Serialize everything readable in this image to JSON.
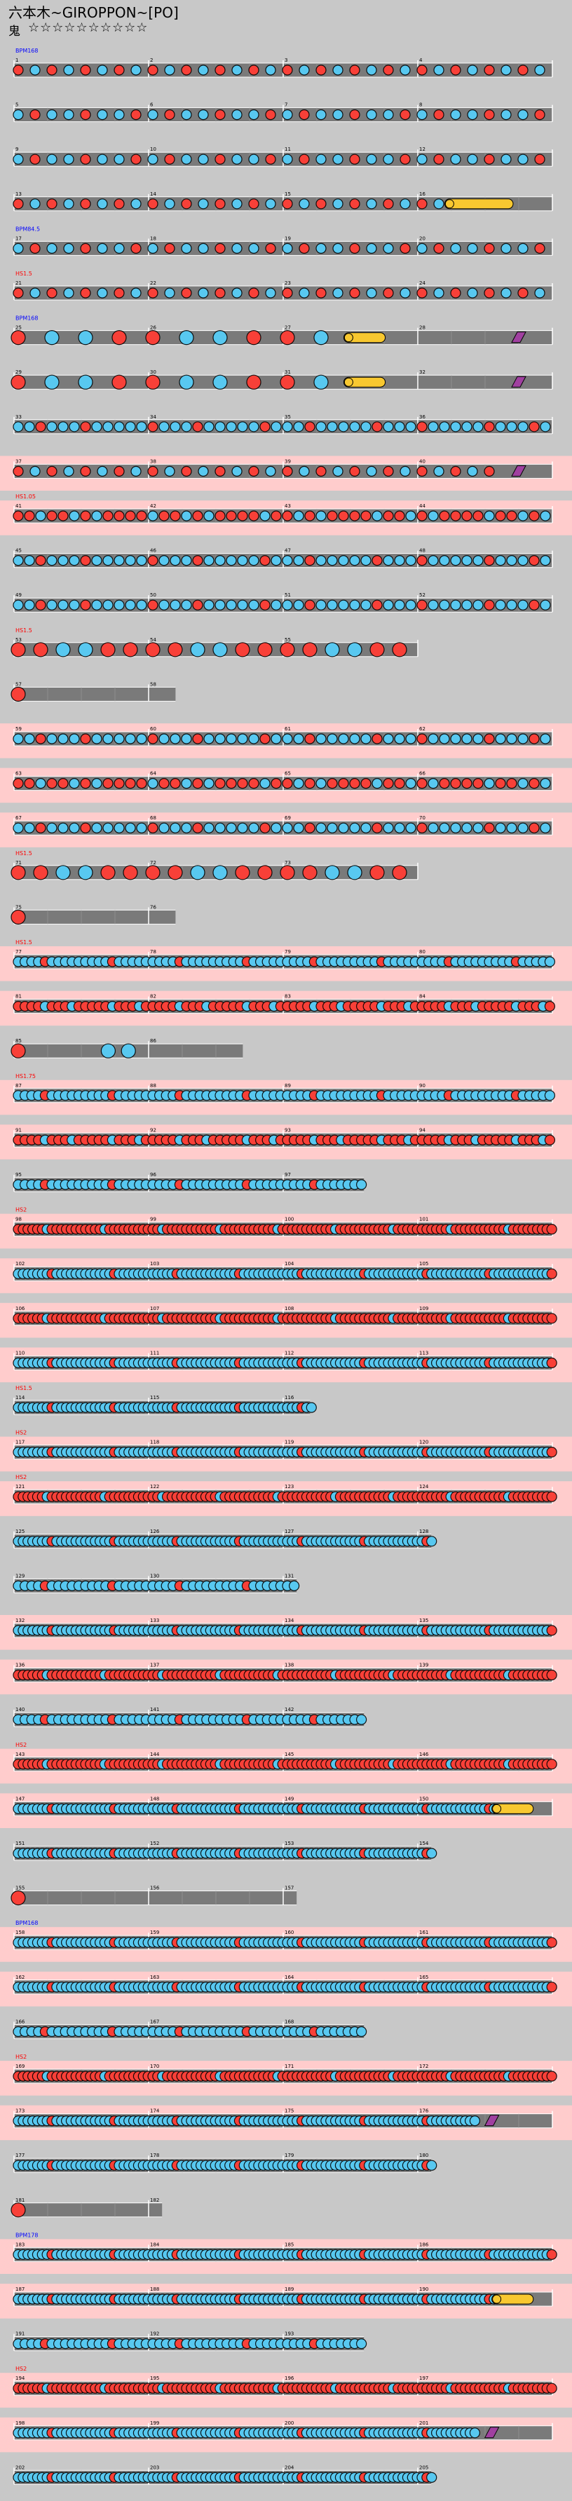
{
  "header": {
    "title": "六本木~GIROPPON~[PO]",
    "course": "鬼",
    "stars": "☆☆☆☆☆☆☆☆☆☆"
  },
  "colors": {
    "background": "#c8c8c8",
    "lane": "#7a7a7a",
    "lane_highlight": "#ffcccc",
    "don": "#f84038",
    "ka": "#58c8f0",
    "drumroll": "#f8c830",
    "balloon": "#a040a0",
    "bpm_label": "#0000ff",
    "hs_label": "#ff0000"
  },
  "rows": [
    {
      "n": 1,
      "len": 4,
      "pat": "4d",
      "lbl": "BPM168"
    },
    {
      "n": 5,
      "len": 4,
      "pat": "4k"
    },
    {
      "n": 9,
      "len": 4,
      "pat": "4k"
    },
    {
      "n": 13,
      "len": 4,
      "pat": "4d",
      "roll": [
        3.2,
        3.5
      ]
    },
    {
      "n": 17,
      "len": 4,
      "pat": "4k",
      "lbl": "BPM84.5"
    },
    {
      "n": 21,
      "len": 4,
      "pat": "4d",
      "lbl": "HS1.5"
    },
    {
      "n": 25,
      "len": 4,
      "pat": "big",
      "roll": [
        2.45,
        2.55
      ],
      "bal": 3.75,
      "lbl": "BPM168"
    },
    {
      "n": 29,
      "len": 4,
      "pat": "big",
      "roll": [
        2.45,
        2.55
      ],
      "bal": 3.75
    },
    {
      "n": 33,
      "len": 4,
      "pat": "8k"
    },
    {
      "n": 37,
      "len": 4,
      "pat": "4d",
      "bal": 3.75,
      "hl": true
    },
    {
      "n": 41,
      "len": 4,
      "pat": "8d",
      "hl": true,
      "lbl": "HS1.05"
    },
    {
      "n": 45,
      "len": 4,
      "pat": "8k"
    },
    {
      "n": 49,
      "len": 4,
      "pat": "8k"
    },
    {
      "n": 53,
      "len": 3,
      "pat": "big4",
      "lbl": "HS1.5"
    },
    {
      "n": 57,
      "len": 1.2,
      "pat": "end"
    },
    {
      "n": 59,
      "len": 4,
      "pat": "8k",
      "hl": true
    },
    {
      "n": 63,
      "len": 4,
      "pat": "8d",
      "hl": true
    },
    {
      "n": 67,
      "len": 4,
      "pat": "8k",
      "hl": true
    },
    {
      "n": 71,
      "len": 3,
      "pat": "big4",
      "lbl": "HS1.5"
    },
    {
      "n": 75,
      "len": 1.2,
      "pat": "end"
    },
    {
      "n": 77,
      "len": 4,
      "pat": "16k",
      "hl": true,
      "lbl": "HS1.5"
    },
    {
      "n": 81,
      "len": 4,
      "pat": "16d",
      "hl": true
    },
    {
      "n": 85,
      "len": 1.7,
      "pat": "end3"
    },
    {
      "n": 87,
      "len": 4,
      "pat": "16k",
      "hl": true,
      "lbl": "HS1.75"
    },
    {
      "n": 91,
      "len": 4,
      "pat": "16d",
      "hl": true
    },
    {
      "n": 95,
      "len": 2.6,
      "pat": "16k"
    },
    {
      "n": 98,
      "len": 4,
      "pat": "24d",
      "hl": true,
      "lbl": "HS2"
    },
    {
      "n": 102,
      "len": 4,
      "pat": "24k",
      "hl": true
    },
    {
      "n": 106,
      "len": 4,
      "pat": "24d",
      "hl": true
    },
    {
      "n": 110,
      "len": 4,
      "pat": "24k",
      "hl": true
    },
    {
      "n": 114,
      "len": 2.2,
      "pat": "24k",
      "lbl": "HS1.5"
    },
    {
      "n": 117,
      "len": 4,
      "pat": "24k",
      "hl": true,
      "lbl": "HS2"
    },
    {
      "n": 121,
      "len": 4,
      "pat": "24d",
      "hl": true,
      "lbl": "HS2"
    },
    {
      "n": 125,
      "len": 3.1,
      "pat": "24k"
    },
    {
      "n": 129,
      "len": 2.1,
      "pat": "16k"
    },
    {
      "n": 132,
      "len": 4,
      "pat": "24k",
      "hl": true
    },
    {
      "n": 136,
      "len": 4,
      "pat": "24d",
      "hl": true
    },
    {
      "n": 140,
      "len": 2.6,
      "pat": "16k"
    },
    {
      "n": 143,
      "len": 4,
      "pat": "24d",
      "hl": true,
      "lbl": "HS2"
    },
    {
      "n": 147,
      "len": 4,
      "pat": "24k",
      "roll": [
        3.55,
        3.65
      ],
      "hl": true
    },
    {
      "n": 151,
      "len": 3.1,
      "pat": "24k"
    },
    {
      "n": 155,
      "len": 2.1,
      "pat": "end"
    },
    {
      "n": 158,
      "len": 4,
      "pat": "24k",
      "hl": true,
      "lbl": "BPM168"
    },
    {
      "n": 162,
      "len": 4,
      "pat": "24k",
      "hl": true
    },
    {
      "n": 166,
      "len": 2.6,
      "pat": "16k"
    },
    {
      "n": 169,
      "len": 4,
      "pat": "24d",
      "hl": true,
      "lbl": "HS2"
    },
    {
      "n": 173,
      "len": 4,
      "pat": "24k",
      "bal": 3.55,
      "hl": true
    },
    {
      "n": 177,
      "len": 3.1,
      "pat": "24k"
    },
    {
      "n": 181,
      "len": 1.1,
      "pat": "end"
    },
    {
      "n": 183,
      "len": 4,
      "pat": "24k",
      "hl": true,
      "lbl": "BPM178"
    },
    {
      "n": 187,
      "len": 4,
      "pat": "24k",
      "roll": [
        3.55,
        3.65
      ],
      "hl": true
    },
    {
      "n": 191,
      "len": 2.6,
      "pat": "16k"
    },
    {
      "n": 194,
      "len": 4,
      "pat": "24d",
      "hl": true,
      "lbl": "HS2"
    },
    {
      "n": 198,
      "len": 4,
      "pat": "24k",
      "bal": 3.55,
      "hl": true
    },
    {
      "n": 202,
      "len": 3.1,
      "pat": "24k"
    }
  ]
}
